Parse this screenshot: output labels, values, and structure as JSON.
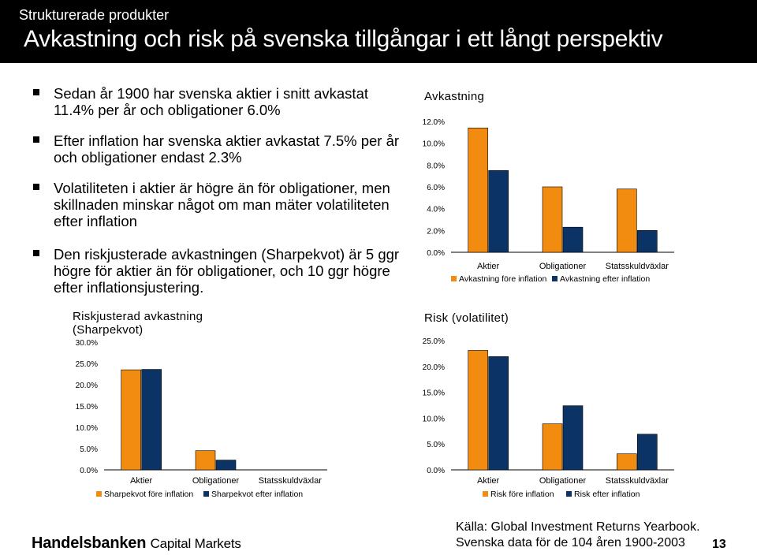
{
  "header": {
    "subtitle": "Strukturerade produkter",
    "title": "Avkastning och risk på svenska tillgångar i ett långt perspektiv"
  },
  "bullets": [
    "Sedan år 1900 har svenska aktier i snitt avkastat 11.4% per år och obligationer 6.0%",
    "Efter inflation har svenska aktier avkastat 7.5% per år och obligationer endast 2.3%",
    "Volatiliteten i aktier är högre än för obligationer, men skillnaden minskar något om man mäter volatiliteten efter inflation",
    "Den riskjusterade avkastningen (Sharpekvot) är 5 ggr högre för aktier än för obligationer, och 10 ggr högre efter inflationsjustering."
  ],
  "colors": {
    "orange": "#F28C11",
    "navy": "#0B3366"
  },
  "footer": {
    "logo_bold": "Handelsbanken",
    "logo_rest": "Capital Markets",
    "source_line1": "Källa: Global Investment Returns Yearbook.",
    "source_line2": "Svenska data för de 104 åren 1900-2003",
    "page_number": "13"
  },
  "chart_data": [
    {
      "type": "bar",
      "title": "Avkastning",
      "categories": [
        "Aktier",
        "Obligationer",
        "Statsskuldväxlar"
      ],
      "series": [
        {
          "name": "Avkastning före inflation",
          "values": [
            11.4,
            6.0,
            5.8
          ]
        },
        {
          "name": "Avkastning efter inflation",
          "values": [
            7.5,
            2.3,
            2.0
          ]
        }
      ],
      "ylim": [
        0,
        12
      ],
      "yticks": [
        "0.0%",
        "2.0%",
        "4.0%",
        "6.0%",
        "8.0%",
        "10.0%",
        "12.0%"
      ],
      "legend": "bottom"
    },
    {
      "type": "bar",
      "title": "Riskjusterad avkastning (Sharpekvot)",
      "categories": [
        "Aktier",
        "Obligationer",
        "Statsskuldväxlar"
      ],
      "series": [
        {
          "name": "Sharpekvot före inflation",
          "values": [
            23.5,
            4.5,
            0
          ]
        },
        {
          "name": "Sharpekvot efter inflation",
          "values": [
            23.6,
            2.3,
            0
          ]
        }
      ],
      "ylim": [
        0,
        30
      ],
      "yticks": [
        "0.0%",
        "5.0%",
        "10.0%",
        "15.0%",
        "20.0%",
        "25.0%",
        "30.0%"
      ],
      "legend": "bottom"
    },
    {
      "type": "bar",
      "title": "Risk (volatilitet)",
      "categories": [
        "Aktier",
        "Obligationer",
        "Statsskuldväxlar"
      ],
      "series": [
        {
          "name": "Risk före inflation",
          "values": [
            23.1,
            8.9,
            3.1
          ]
        },
        {
          "name": "Risk efter inflation",
          "values": [
            21.9,
            12.4,
            6.9
          ]
        }
      ],
      "ylim": [
        0,
        25
      ],
      "yticks": [
        "0.0%",
        "5.0%",
        "10.0%",
        "15.0%",
        "20.0%",
        "25.0%"
      ],
      "legend": "bottom"
    }
  ]
}
